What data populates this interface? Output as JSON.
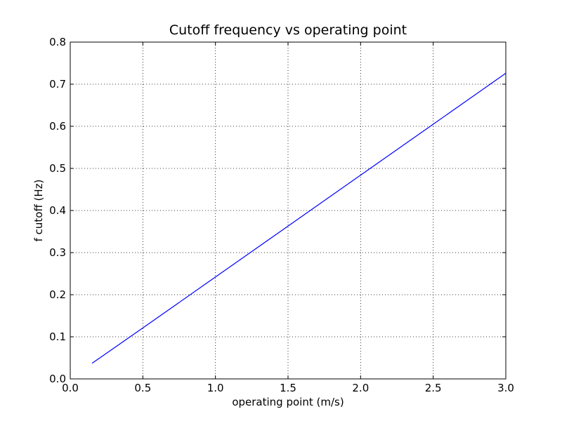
{
  "chart_data": {
    "type": "line",
    "title": "Cutoff frequency vs operating point",
    "xlabel": "operating point (m/s)",
    "ylabel": "f cutoff (Hz)",
    "xlim": [
      0.0,
      3.0
    ],
    "ylim": [
      0.0,
      0.8
    ],
    "xticks": [
      0.0,
      0.5,
      1.0,
      1.5,
      2.0,
      2.5,
      3.0
    ],
    "xtick_labels": [
      "0.0",
      "0.5",
      "1.0",
      "1.5",
      "2.0",
      "2.5",
      "3.0"
    ],
    "yticks": [
      0.0,
      0.1,
      0.2,
      0.3,
      0.4,
      0.5,
      0.6,
      0.7,
      0.8
    ],
    "ytick_labels": [
      "0.0",
      "0.1",
      "0.2",
      "0.3",
      "0.4",
      "0.5",
      "0.6",
      "0.7",
      "0.8"
    ],
    "grid": true,
    "series": [
      {
        "color": "#0000ff",
        "x": [
          0.15,
          0.5,
          1.0,
          1.5,
          2.0,
          2.5,
          3.0
        ],
        "y": [
          0.037,
          0.121,
          0.242,
          0.363,
          0.484,
          0.605,
          0.726
        ]
      }
    ]
  }
}
